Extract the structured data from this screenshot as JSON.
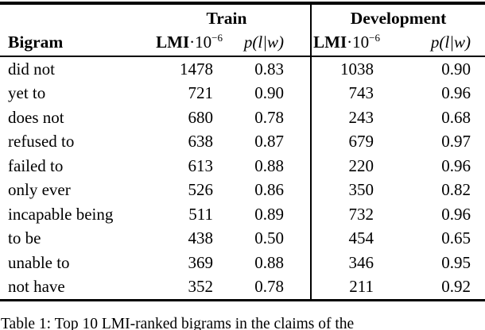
{
  "table": {
    "groups": {
      "train": "Train",
      "development": "Development"
    },
    "header": {
      "bigram": "Bigram",
      "lmi_bold": "LMI",
      "lmi_rest": "·10",
      "lmi_exp": "−6",
      "p_label": "p(l|w)"
    },
    "rows": [
      {
        "bigram": "did not",
        "train_lmi": "1478",
        "train_p": "0.83",
        "dev_lmi": "1038",
        "dev_p": "0.90"
      },
      {
        "bigram": "yet to",
        "train_lmi": "721",
        "train_p": "0.90",
        "dev_lmi": "743",
        "dev_p": "0.96"
      },
      {
        "bigram": "does not",
        "train_lmi": "680",
        "train_p": "0.78",
        "dev_lmi": "243",
        "dev_p": "0.68"
      },
      {
        "bigram": "refused to",
        "train_lmi": "638",
        "train_p": "0.87",
        "dev_lmi": "679",
        "dev_p": "0.97"
      },
      {
        "bigram": "failed to",
        "train_lmi": "613",
        "train_p": "0.88",
        "dev_lmi": "220",
        "dev_p": "0.96"
      },
      {
        "bigram": "only ever",
        "train_lmi": "526",
        "train_p": "0.86",
        "dev_lmi": "350",
        "dev_p": "0.82"
      },
      {
        "bigram": "incapable being",
        "train_lmi": "511",
        "train_p": "0.89",
        "dev_lmi": "732",
        "dev_p": "0.96"
      },
      {
        "bigram": "to be",
        "train_lmi": "438",
        "train_p": "0.50",
        "dev_lmi": "454",
        "dev_p": "0.65"
      },
      {
        "bigram": "unable to",
        "train_lmi": "369",
        "train_p": "0.88",
        "dev_lmi": "346",
        "dev_p": "0.95"
      },
      {
        "bigram": "not have",
        "train_lmi": "352",
        "train_p": "0.78",
        "dev_lmi": "211",
        "dev_p": "0.92"
      }
    ]
  },
  "caption": {
    "text": "Table 1: Top 10 LMI-ranked bigrams in the claims of the"
  }
}
